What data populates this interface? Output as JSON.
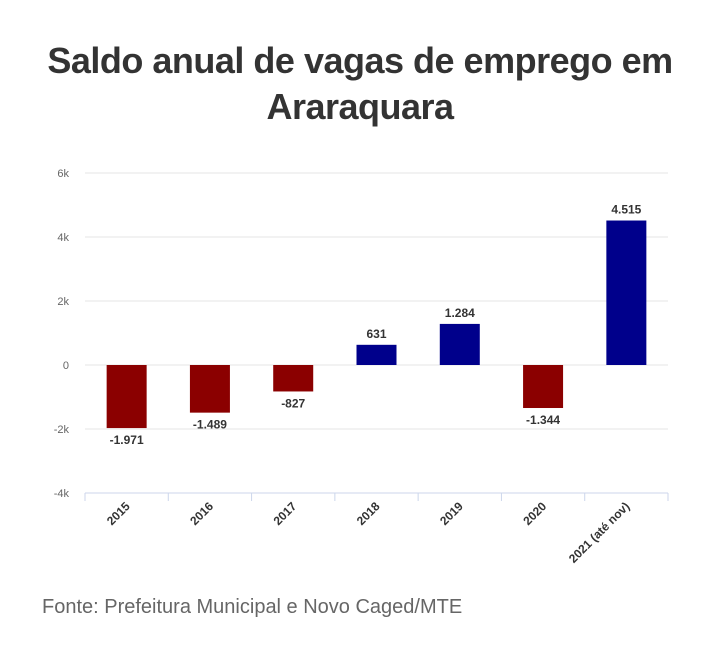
{
  "title": "Saldo anual de vagas de emprego em Araraquara",
  "source": "Fonte: Prefeitura Municipal e Novo Caged/MTE",
  "colors": {
    "positive": "#00008b",
    "negative": "#8b0000",
    "grid": "#e6e6e6",
    "axis": "#ccd6eb"
  },
  "chart_data": {
    "type": "bar",
    "title": "Saldo anual de vagas de emprego em Araraquara",
    "xlabel": "",
    "ylabel": "",
    "categories": [
      "2015",
      "2016",
      "2017",
      "2018",
      "2019",
      "2020",
      "2021 (até nov)"
    ],
    "values": [
      -1971,
      -1489,
      -827,
      631,
      1284,
      -1344,
      4515
    ],
    "value_labels": [
      "-1.971",
      "-1.489",
      "-827",
      "631",
      "1.284",
      "-1.344",
      "4.515"
    ],
    "ylim": [
      -4000,
      6000
    ],
    "yticks": [
      -4000,
      -2000,
      0,
      2000,
      4000,
      6000
    ],
    "ytick_labels": [
      "-4k",
      "-2k",
      "0",
      "2k",
      "4k",
      "6k"
    ],
    "grid": true,
    "legend": false
  }
}
